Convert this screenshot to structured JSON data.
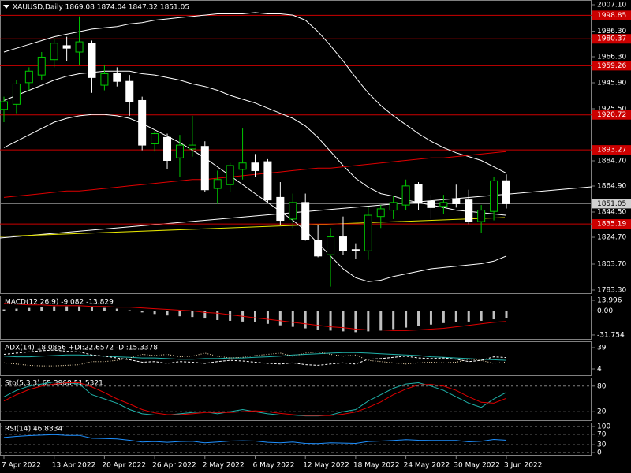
{
  "chart_data": [
    {
      "type": "candlestick",
      "title": "XAUUSD,Daily  1869.08 1874.04 1847.32 1851.05",
      "categories": [
        "7 Apr 2022",
        null,
        null,
        null,
        "13 Apr 2022",
        null,
        null,
        null,
        "20 Apr 2022",
        null,
        null,
        null,
        "26 Apr 2022",
        null,
        null,
        null,
        "2 May 2022",
        null,
        null,
        null,
        "6 May 2022",
        null,
        null,
        null,
        "12 May 2022",
        null,
        null,
        null,
        "18 May 2022",
        null,
        null,
        null,
        "24 May 2022",
        null,
        null,
        null,
        "30 May 2022",
        null,
        null,
        null,
        "3 Jun 2022"
      ],
      "open": [
        1925,
        1929,
        1946,
        1952,
        1964,
        1975,
        1970,
        1977,
        1944,
        1953,
        1947,
        1932,
        1898,
        1903,
        1887,
        1894,
        1896,
        1863,
        1866,
        1878,
        1883,
        1884,
        1856,
        1839,
        1852,
        1822,
        1811,
        1825,
        1815,
        1814,
        1841,
        1846,
        1850,
        1866,
        1853,
        1849,
        1855,
        1854,
        1837,
        1845,
        1869.08
      ],
      "high": [
        1935,
        1948,
        1958,
        1970,
        1981,
        1982,
        1998,
        1979,
        1960,
        1958,
        1952,
        1935,
        1908,
        1906,
        1905,
        1920,
        1900,
        1877,
        1883,
        1910,
        1890,
        1886,
        1868,
        1859,
        1859,
        1834,
        1832,
        1841,
        1820,
        1849,
        1850,
        1857,
        1870,
        1868,
        1858,
        1858,
        1866,
        1862,
        1850,
        1872,
        1874.04
      ],
      "low": [
        1915,
        1922,
        1940,
        1948,
        1958,
        1963,
        1960,
        1938,
        1940,
        1943,
        1920,
        1893,
        1892,
        1878,
        1872,
        1888,
        1860,
        1851,
        1860,
        1870,
        1872,
        1852,
        1834,
        1832,
        1822,
        1809,
        1786,
        1811,
        1808,
        1807,
        1832,
        1839,
        1846,
        1846,
        1839,
        1843,
        1848,
        1835,
        1828,
        1838,
        1847.32
      ],
      "close": [
        1931,
        1945,
        1955,
        1966,
        1977,
        1973,
        1978,
        1950,
        1953,
        1947,
        1931,
        1897,
        1906,
        1885,
        1897,
        1897,
        1862,
        1870,
        1881,
        1883,
        1877,
        1854,
        1838,
        1852,
        1823,
        1810,
        1825,
        1814,
        1814,
        1842,
        1847,
        1852,
        1865,
        1852,
        1848,
        1852,
        1851,
        1837,
        1846,
        1869,
        1851.05
      ],
      "bull_color": "#00c800",
      "bear_color": "#ffffff",
      "series": [
        {
          "color": "#ffffff",
          "values": [
            1970,
            1973,
            1976,
            1979,
            1982,
            1984,
            1986,
            1988,
            1989,
            1990,
            1992,
            1993,
            1995,
            1996,
            1997,
            1998,
            1999,
            2000,
            2000,
            2000,
            2001,
            2000,
            2000,
            1999,
            1995,
            1986,
            1975,
            1963,
            1950,
            1938,
            1928,
            1920,
            1913,
            1906,
            1900,
            1895,
            1891,
            1888,
            1885,
            1880,
            1875
          ]
        },
        {
          "color": "#ffffff",
          "values": [
            1932,
            1936,
            1940,
            1944,
            1948,
            1951,
            1953,
            1954,
            1955,
            1955,
            1955,
            1953,
            1952,
            1950,
            1948,
            1945,
            1943,
            1940,
            1936,
            1933,
            1930,
            1926,
            1922,
            1918,
            1912,
            1903,
            1892,
            1881,
            1871,
            1864,
            1859,
            1857,
            1854,
            1852,
            1850,
            1848,
            1846,
            1845,
            1844,
            1843,
            1842
          ]
        },
        {
          "color": "#ffffff",
          "values": [
            1895,
            1900,
            1905,
            1910,
            1915,
            1918,
            1920,
            1921,
            1921,
            1920,
            1918,
            1914,
            1909,
            1904,
            1899,
            1893,
            1887,
            1880,
            1873,
            1866,
            1859,
            1852,
            1845,
            1838,
            1830,
            1820,
            1810,
            1800,
            1793,
            1790,
            1791,
            1794,
            1796,
            1798,
            1800,
            1801,
            1802,
            1803,
            1804,
            1806,
            1810
          ]
        },
        {
          "color": "#e00000",
          "values": [
            1856,
            1857,
            1858,
            1859,
            1860,
            1861,
            1861,
            1862,
            1863,
            1864,
            1865,
            1866,
            1867,
            1868,
            1869,
            1870,
            1870,
            1871,
            1872,
            1873,
            1874,
            1875,
            1876,
            1877,
            1878,
            1879,
            1879,
            1880,
            1881,
            1882,
            1883,
            1884,
            1885,
            1886,
            1887,
            1887,
            1888,
            1889,
            1890,
            1891,
            1892
          ]
        }
      ],
      "levels": [
        1998.85,
        1980.37,
        1959.26,
        1920.72,
        1893.27,
        1835.19
      ],
      "level_color": "#cc0000",
      "last_price": 1851.05,
      "ylim": [
        1783.3,
        2007.1
      ],
      "yticks": [
        {
          "value": 2007.1,
          "label": "2007.10"
        },
        {
          "value": 1986.3,
          "label": "1986.30"
        },
        {
          "value": 1966.3,
          "label": "1966.30"
        },
        {
          "value": 1945.9,
          "label": "1945.90"
        },
        {
          "value": 1925.5,
          "label": "1925.50"
        },
        {
          "value": 1884.7,
          "label": "1884.70"
        },
        {
          "value": 1864.9,
          "label": "1864.90"
        },
        {
          "value": 1844.5,
          "label": "1844.50"
        },
        {
          "value": 1824.7,
          "label": "1824.70"
        },
        {
          "value": 1803.7,
          "label": "1803.70"
        },
        {
          "value": 1783.3,
          "label": "1783.30"
        }
      ]
    },
    {
      "type": "macd",
      "title": "MACD(12,26,9) -9.082 -13.829",
      "color": "#c0c0c0",
      "values": [
        2,
        3,
        4,
        5,
        6,
        6,
        6,
        5,
        4,
        3,
        1,
        -2,
        -4,
        -6,
        -7,
        -8,
        -10,
        -12,
        -13,
        -14,
        -15,
        -17,
        -19,
        -21,
        -23,
        -25,
        -26,
        -27,
        -28,
        -27,
        -26,
        -24,
        -22,
        -20,
        -18,
        -16,
        -15,
        -14,
        -13,
        -11,
        -9.082
      ],
      "series": [
        {
          "color": "#e00000",
          "values": [
            10,
            9,
            8,
            8,
            7,
            7,
            7,
            6,
            6,
            5,
            5,
            4,
            3,
            2,
            1,
            0,
            -2,
            -3,
            -5,
            -7,
            -9,
            -11,
            -13,
            -15,
            -17,
            -19,
            -21,
            -22,
            -24,
            -25,
            -25,
            -26,
            -26,
            -25,
            -24,
            -23,
            -21,
            -19,
            -17,
            -15,
            -13.829
          ]
        }
      ],
      "ylim": [
        -37,
        19.2
      ],
      "yticks": [
        13.996,
        {
          "value": 0,
          "label": "0.00"
        },
        -31.754
      ],
      "grid": false
    },
    {
      "type": "line",
      "title": "ADX(14) 18.0856 +DI:22.6572 -DI:15.3378",
      "series": [
        {
          "color": "#20b2aa",
          "dash": "none",
          "values": [
            25,
            24,
            24,
            25,
            26,
            27,
            27,
            26,
            25,
            24,
            23,
            22,
            22,
            21,
            20,
            20,
            21,
            21,
            22,
            22,
            23,
            24,
            25,
            27,
            28,
            29,
            30,
            31,
            31,
            30,
            29,
            28,
            27,
            26,
            24,
            23,
            22,
            21,
            20,
            19,
            18.0856
          ]
        },
        {
          "color": "#ffffff",
          "dash": "3,2",
          "values": [
            28,
            30,
            32,
            34,
            35,
            33,
            32,
            27,
            25,
            22,
            19,
            15,
            16,
            13,
            16,
            15,
            13,
            16,
            18,
            17,
            15,
            13,
            12,
            14,
            11,
            10,
            12,
            14,
            12,
            20,
            21,
            23,
            25,
            22,
            21,
            22,
            20,
            16,
            18,
            24,
            22.6572
          ]
        },
        {
          "color": "#f5deb3",
          "dash": "1,2",
          "values": [
            14,
            12,
            10,
            9,
            9,
            10,
            11,
            16,
            16,
            18,
            22,
            28,
            26,
            28,
            24,
            25,
            30,
            25,
            22,
            23,
            26,
            28,
            30,
            25,
            30,
            32,
            28,
            25,
            27,
            18,
            16,
            14,
            12,
            14,
            15,
            14,
            15,
            20,
            18,
            13,
            15.3378
          ]
        }
      ],
      "ylim": [
        -6.4,
        46.8
      ],
      "yticks": [
        39,
        4
      ],
      "grid": false
    },
    {
      "type": "line",
      "title": "Sto(5,3,3) 65.3968 51.5321",
      "series": [
        {
          "color": "#20b2aa",
          "dash": "none",
          "values": [
            55,
            70,
            80,
            85,
            90,
            88,
            85,
            60,
            50,
            40,
            25,
            15,
            12,
            12,
            15,
            18,
            20,
            15,
            20,
            25,
            20,
            15,
            12,
            12,
            10,
            10,
            12,
            20,
            25,
            45,
            60,
            75,
            85,
            88,
            80,
            70,
            55,
            40,
            30,
            50,
            65.3968
          ]
        },
        {
          "color": "#e00000",
          "dash": "none",
          "values": [
            45,
            60,
            72,
            80,
            85,
            88,
            88,
            78,
            65,
            50,
            38,
            25,
            17,
            13,
            13,
            15,
            18,
            18,
            18,
            20,
            22,
            20,
            16,
            13,
            11,
            11,
            11,
            14,
            19,
            30,
            43,
            60,
            73,
            83,
            84,
            80,
            70,
            55,
            42,
            40,
            51.5321
          ]
        }
      ],
      "ylim": [
        0,
        100
      ],
      "yticks": [
        80,
        20
      ],
      "grid": true
    },
    {
      "type": "line",
      "title": "RSI(14) 46.8334",
      "series": [
        {
          "color": "#1e90ff",
          "dash": "none",
          "values": [
            58,
            62,
            65,
            67,
            69,
            66,
            66,
            55,
            54,
            52,
            47,
            40,
            42,
            39,
            42,
            43,
            37,
            40,
            44,
            45,
            44,
            39,
            37,
            40,
            35,
            34,
            37,
            36,
            35,
            42,
            44,
            46,
            49,
            47,
            46,
            46,
            46,
            41,
            43,
            50,
            46.8334
          ]
        }
      ],
      "ylim": [
        0,
        100
      ],
      "yticks": [
        100,
        70,
        30,
        0
      ],
      "grid": true
    }
  ]
}
